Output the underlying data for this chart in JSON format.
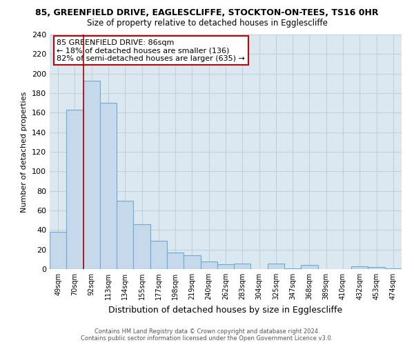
{
  "title1": "85, GREENFIELD DRIVE, EAGLESCLIFFE, STOCKTON-ON-TEES, TS16 0HR",
  "title2": "Size of property relative to detached houses in Egglescliffe",
  "xlabel": "Distribution of detached houses by size in Egglescliffe",
  "ylabel": "Number of detached properties",
  "bar_labels": [
    "49sqm",
    "70sqm",
    "92sqm",
    "113sqm",
    "134sqm",
    "155sqm",
    "177sqm",
    "198sqm",
    "219sqm",
    "240sqm",
    "262sqm",
    "283sqm",
    "304sqm",
    "325sqm",
    "347sqm",
    "368sqm",
    "389sqm",
    "410sqm",
    "432sqm",
    "453sqm",
    "474sqm"
  ],
  "bar_values": [
    38,
    163,
    193,
    170,
    70,
    46,
    29,
    17,
    14,
    8,
    5,
    6,
    0,
    6,
    1,
    4,
    0,
    0,
    3,
    2,
    1
  ],
  "bar_color": "#c5d9ea",
  "bar_edge_color": "#6aaad4",
  "marker_line_color": "#aa0000",
  "annotation_title": "85 GREENFIELD DRIVE: 86sqm",
  "annotation_line1": "← 18% of detached houses are smaller (136)",
  "annotation_line2": "82% of semi-detached houses are larger (635) →",
  "annotation_box_color": "#ffffff",
  "annotation_box_edge": "#cc0000",
  "ylim": [
    0,
    240
  ],
  "yticks": [
    0,
    20,
    40,
    60,
    80,
    100,
    120,
    140,
    160,
    180,
    200,
    220,
    240
  ],
  "bg_color": "#dce8f0",
  "grid_color": "#c0d0dc",
  "footnote1": "Contains HM Land Registry data © Crown copyright and database right 2024.",
  "footnote2": "Contains public sector information licensed under the Open Government Licence v3.0."
}
